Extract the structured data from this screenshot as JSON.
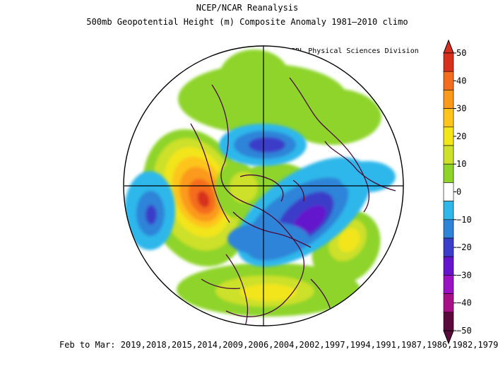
{
  "title": "NCEP/NCAR Reanalysis",
  "subtitle": "500mb Geopotential Height (m) Composite Anomaly 1981–2010 climo",
  "credit": "NOAA/ESRL Physical Sciences Division",
  "footer": "Feb to Mar: 2019,2018,2015,2014,2009,2006,2004,2002,1997,1994,1991,1987,1986,1982,1979",
  "colorbar": {
    "ticks": [
      "50",
      "40",
      "30",
      "20",
      "10",
      "0",
      "−10",
      "−20",
      "−30",
      "−40",
      "−50"
    ],
    "colors": [
      "#d7301f",
      "#f46d1f",
      "#fb9a1a",
      "#fdc51c",
      "#f2e51a",
      "#cde02a",
      "#8ed429",
      "#ffffff",
      "#2fb7ea",
      "#2f84d8",
      "#3b3ec9",
      "#6414cc",
      "#9a12c4",
      "#a81088",
      "#5a0a3c"
    ]
  },
  "map_features": {
    "positive_centers": [
      "north-pacific",
      "eastern-europe",
      "south-atlantic-arc",
      "north-atlantic-lobe"
    ],
    "negative_centers": [
      "polar-cap",
      "western-north-america",
      "central-asia",
      "southwest-pacific"
    ],
    "land_outline_color": "#4a0b3a"
  }
}
